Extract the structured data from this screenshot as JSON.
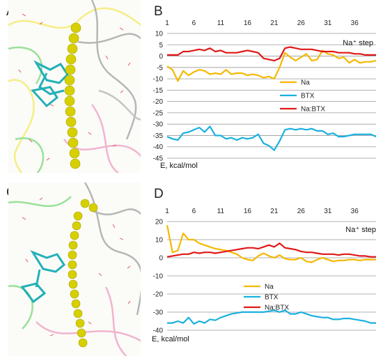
{
  "panels": {
    "a": "A",
    "b": "B",
    "c": "C",
    "d": "D"
  },
  "colors": {
    "Na": "#f5b800",
    "BTX": "#1ab0e0",
    "NaBTX": "#e01818",
    "grid": "#999999"
  },
  "images": {
    "A": {
      "description": "molecular model: channel ribbons, BTX ligand (cyan sticks), sodium pathway (yellow spheres), water"
    },
    "C": {
      "description": "molecular model: channel ribbons, BTX ligand (cyan sticks), sodium pathway (yellow spheres), water"
    }
  },
  "chart_data": [
    {
      "type": "line",
      "panel": "B",
      "x_ticks": [
        "1",
        "6",
        "11",
        "16",
        "21",
        "26",
        "31",
        "36"
      ],
      "step_label": "Na⁺ step",
      "energy_label": "E, kcal/mol",
      "ylim": [
        -45,
        10
      ],
      "y_ticks": [
        "10",
        "5",
        "0",
        "-5",
        "-10",
        "-15",
        "-20",
        "-25",
        "-30",
        "-35",
        "-40",
        "-45"
      ],
      "grid": true,
      "legend_position": "right-middle",
      "series": [
        {
          "name": "Na",
          "color": "#f5b800",
          "values": [
            -4.5,
            -6,
            -11,
            -6.5,
            -8.5,
            -7,
            -6,
            -6.5,
            -8,
            -7.5,
            -8,
            -6,
            -8,
            -7.5,
            -7.5,
            -8.5,
            -8,
            -8.5,
            -9.5,
            -9,
            -10,
            -5,
            1.5,
            -0.5,
            -2,
            -0.5,
            1,
            -2,
            -1.5,
            2.5,
            1,
            0.5,
            -1,
            -0.5,
            -3,
            -1.5,
            -3,
            -2.5,
            -2.5,
            -2
          ]
        },
        {
          "name": "BTX",
          "color": "#1ab0e0",
          "values": [
            -35.5,
            -36.5,
            -37,
            -34,
            -33.5,
            -32.5,
            -31.5,
            -33.5,
            -31,
            -35,
            -35,
            -36.5,
            -36,
            -37,
            -36,
            -36.5,
            -36,
            -34.5,
            -38.5,
            -39.5,
            -41.5,
            -37.5,
            -32.5,
            -32,
            -32.5,
            -32,
            -32.5,
            -32,
            -33,
            -33,
            -34.5,
            -34,
            -35.5,
            -35.5,
            -35,
            -34.5,
            -34.5,
            -34.5,
            -34.5,
            -35.5
          ]
        },
        {
          "name": "Na:BTX",
          "color": "#e01818",
          "values": [
            0.5,
            0.5,
            0.5,
            2,
            2,
            2.5,
            3,
            2.5,
            3.5,
            2,
            2.5,
            1.5,
            1.5,
            1.5,
            2,
            2.5,
            2,
            1.5,
            -1,
            -1.5,
            -2,
            -1,
            3.5,
            4,
            3.5,
            3,
            3,
            3,
            2.5,
            2,
            2,
            2,
            1.5,
            1.5,
            1.5,
            1,
            1,
            0.5,
            0.5,
            0.5
          ]
        }
      ]
    },
    {
      "type": "line",
      "panel": "D",
      "x_ticks": [
        "1",
        "6",
        "11",
        "16",
        "21",
        "26",
        "31",
        "36"
      ],
      "step_label": "Na⁺ step",
      "energy_label": "E, kcal/mol",
      "ylim": [
        -40,
        20
      ],
      "y_ticks": [
        "20",
        "10",
        "0",
        "-10",
        "-20",
        "-30",
        "-40"
      ],
      "grid": true,
      "legend_position": "left-middle",
      "series": [
        {
          "name": "Na",
          "color": "#f5b800",
          "values": [
            18,
            3,
            4,
            13.5,
            10,
            10,
            8,
            7,
            6,
            5,
            4.5,
            4,
            3,
            2,
            0,
            -1,
            -1.5,
            1,
            2.5,
            1,
            0,
            1.5,
            -0.5,
            -1,
            -1,
            0,
            -2,
            -2.5,
            -1,
            0,
            -1,
            -2,
            -1.5,
            -1.5,
            -1,
            -1,
            -1.5,
            -1,
            -1,
            -1
          ]
        },
        {
          "name": "BTX",
          "color": "#1ab0e0",
          "values": [
            -36,
            -36,
            -35,
            -36,
            -33,
            -36.5,
            -35,
            -36,
            -34,
            -34.5,
            -33,
            -32,
            -31,
            -30.5,
            -30,
            -30,
            -30,
            -30,
            -30,
            -29.5,
            -29,
            -30,
            -29,
            -31,
            -31,
            -30,
            -31,
            -32,
            -32.5,
            -33,
            -33,
            -34,
            -34,
            -33.5,
            -33.5,
            -34,
            -34.5,
            -35,
            -36,
            -36
          ]
        },
        {
          "name": "Na:BTX",
          "color": "#e01818",
          "values": [
            0.5,
            1,
            1.5,
            2,
            2,
            3,
            2.5,
            3,
            3,
            2.5,
            3,
            3.5,
            4,
            4.5,
            5,
            5.5,
            5.5,
            5,
            6,
            7,
            6,
            8,
            5.5,
            5,
            4.5,
            3.5,
            3,
            3,
            2.5,
            2,
            2,
            2,
            1.5,
            2,
            2,
            1.5,
            1,
            1,
            0.5,
            0.5
          ]
        }
      ]
    }
  ]
}
